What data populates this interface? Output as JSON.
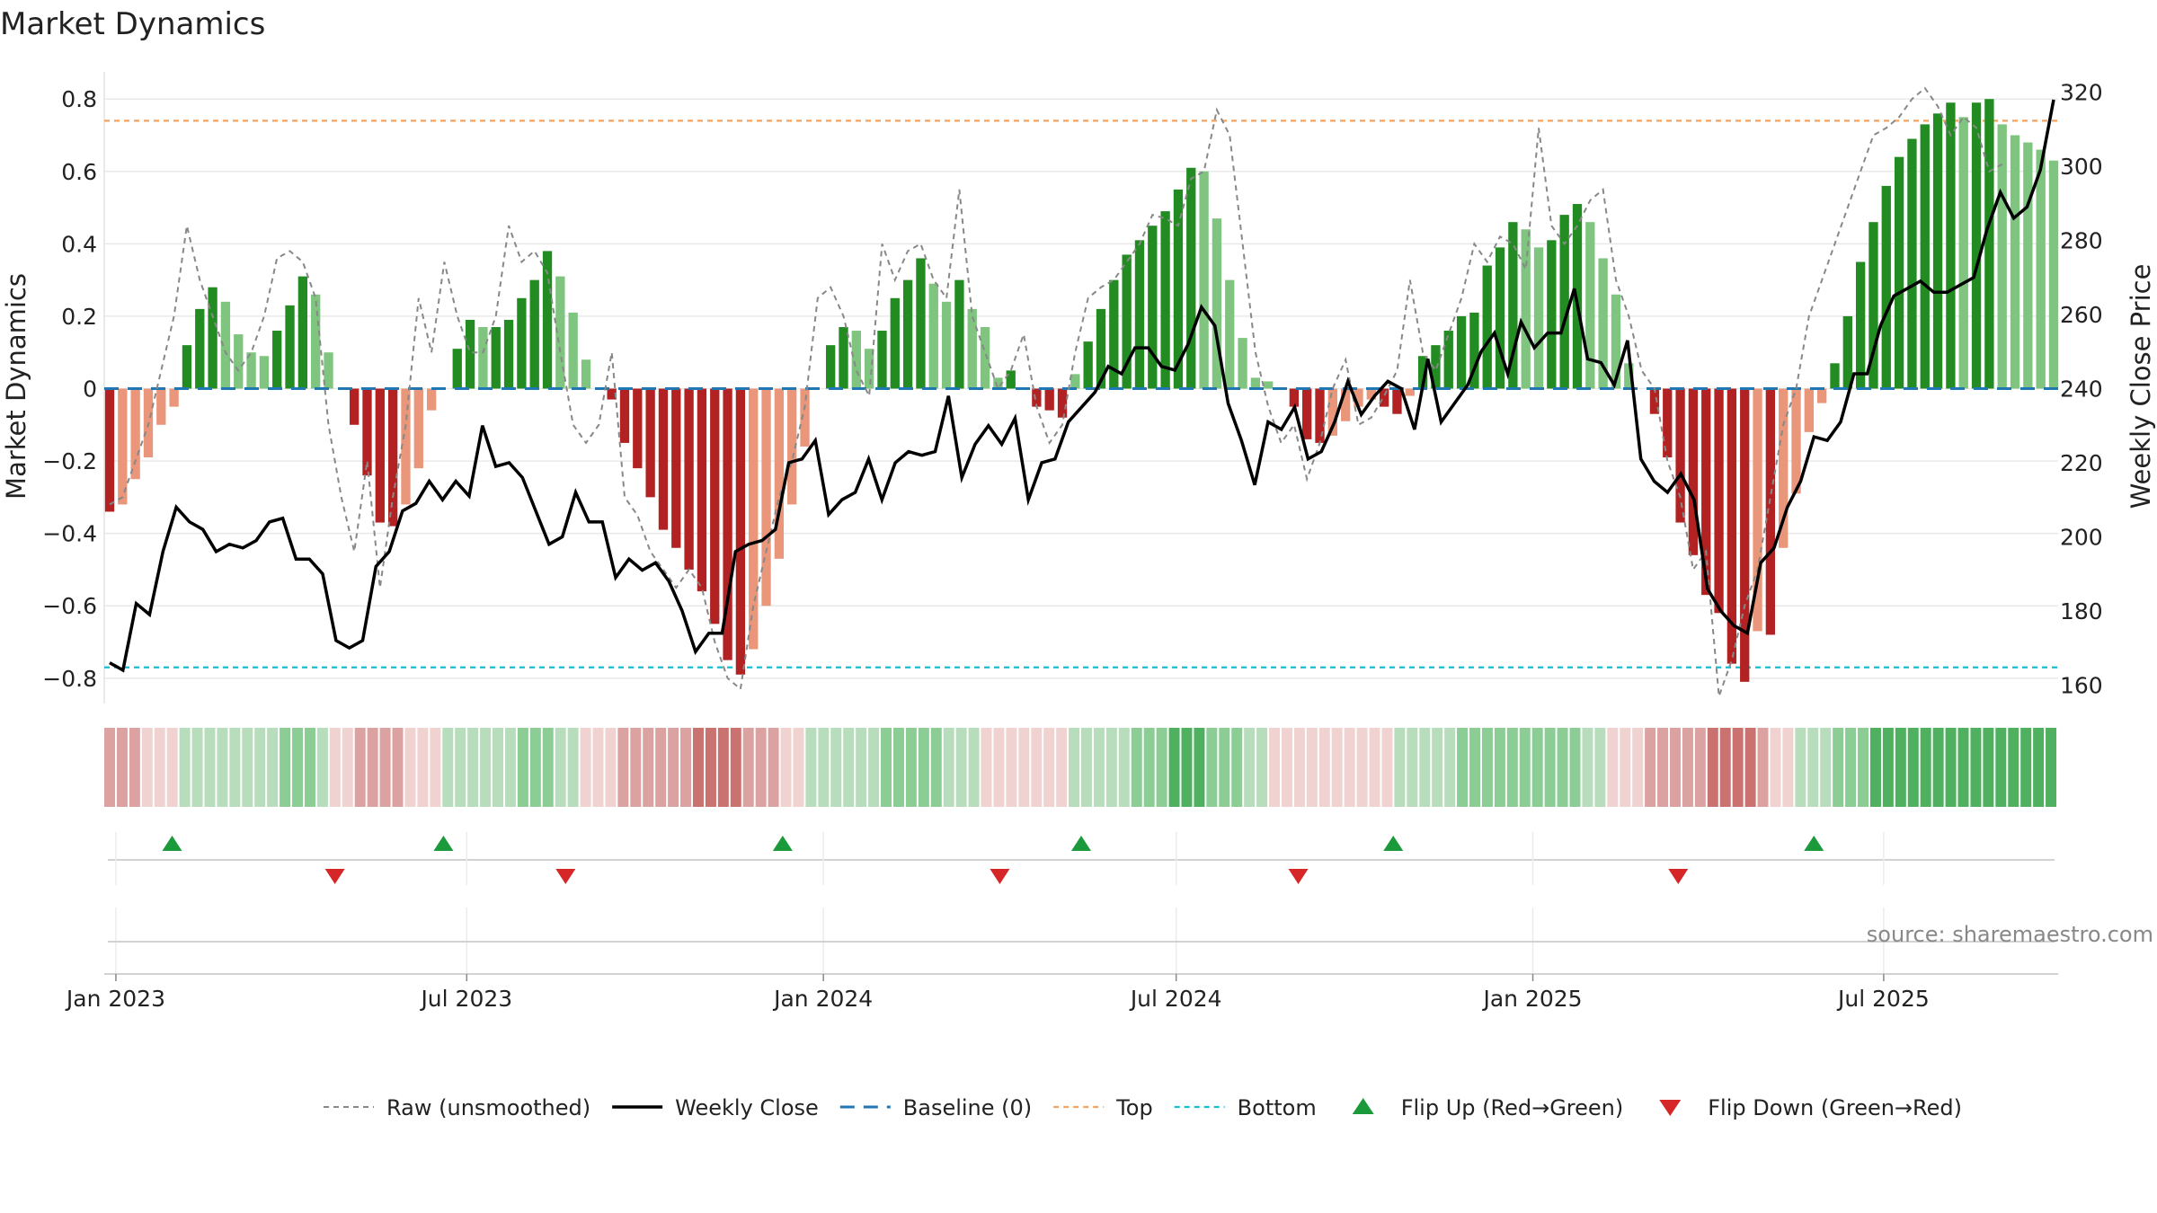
{
  "chart_data": {
    "type": "bar",
    "title": "Market Dynamics",
    "ylabel_left": "Market Dynamics",
    "ylabel_right": "Weekly Close Price",
    "ylim_left": [
      -0.87,
      0.87
    ],
    "ylim_right": [
      155,
      325
    ],
    "yticks_left": [
      "0.8",
      "0.6",
      "0.4",
      "0.2",
      "0",
      "−0.2",
      "−0.4",
      "−0.6",
      "−0.8"
    ],
    "yticks_left_values": [
      0.8,
      0.6,
      0.4,
      0.2,
      0,
      -0.2,
      -0.4,
      -0.6,
      -0.8
    ],
    "yticks_right": [
      "320",
      "300",
      "280",
      "260",
      "240",
      "220",
      "200",
      "180",
      "160"
    ],
    "yticks_right_values": [
      320,
      300,
      280,
      260,
      240,
      220,
      200,
      180,
      160
    ],
    "x_start": "2022-12-26",
    "x_end": "2025-09-29",
    "xticks": [
      {
        "date": "2023-01-01",
        "label": "Jan 2023"
      },
      {
        "date": "2023-07-01",
        "label": "Jul 2023"
      },
      {
        "date": "2024-01-01",
        "label": "Jan 2024"
      },
      {
        "date": "2024-07-01",
        "label": "Jul 2024"
      },
      {
        "date": "2025-01-01",
        "label": "Jan 2025"
      },
      {
        "date": "2025-07-01",
        "label": "Jul 2025"
      }
    ],
    "top_line": 0.74,
    "bottom_line": -0.77,
    "baseline": 0,
    "bars": [
      -0.34,
      -0.32,
      -0.25,
      -0.19,
      -0.1,
      -0.05,
      0.12,
      0.22,
      0.28,
      0.24,
      0.15,
      0.1,
      0.09,
      0.16,
      0.23,
      0.31,
      0.26,
      0.1,
      0,
      -0.1,
      -0.24,
      -0.37,
      -0.38,
      -0.32,
      -0.22,
      -0.06,
      0,
      0.11,
      0.19,
      0.17,
      0.17,
      0.19,
      0.25,
      0.3,
      0.38,
      0.31,
      0.21,
      0.08,
      0,
      -0.03,
      -0.15,
      -0.22,
      -0.3,
      -0.39,
      -0.44,
      -0.5,
      -0.56,
      -0.65,
      -0.75,
      -0.79,
      -0.72,
      -0.6,
      -0.47,
      -0.32,
      -0.16,
      0,
      0.12,
      0.17,
      0.16,
      0.11,
      0.16,
      0.25,
      0.3,
      0.36,
      0.29,
      0.24,
      0.3,
      0.22,
      0.17,
      0.03,
      0.05,
      0,
      -0.05,
      -0.06,
      -0.08,
      0.04,
      0.13,
      0.22,
      0.3,
      0.37,
      0.41,
      0.45,
      0.49,
      0.55,
      0.61,
      0.6,
      0.47,
      0.3,
      0.14,
      0.03,
      0.02,
      0,
      -0.05,
      -0.14,
      -0.15,
      -0.13,
      -0.09,
      -0.05,
      -0.03,
      -0.05,
      -0.07,
      -0.02,
      0.09,
      0.12,
      0.16,
      0.2,
      0.21,
      0.34,
      0.39,
      0.46,
      0.44,
      0.39,
      0.41,
      0.48,
      0.51,
      0.46,
      0.36,
      0.26,
      0.07,
      0,
      -0.07,
      -0.19,
      -0.37,
      -0.46,
      -0.57,
      -0.62,
      -0.76,
      -0.81,
      -0.67,
      -0.68,
      -0.44,
      -0.29,
      -0.12,
      -0.04,
      0.07,
      0.2,
      0.35,
      0.46,
      0.56,
      0.64,
      0.69,
      0.73,
      0.76,
      0.79,
      0.75,
      0.79,
      0.8,
      0.73,
      0.7,
      0.68,
      0.66,
      0.63
    ],
    "raw": [
      -0.32,
      -0.3,
      -0.2,
      -0.1,
      0.05,
      0.2,
      0.45,
      0.3,
      0.2,
      0.1,
      0.05,
      0.1,
      0.2,
      0.36,
      0.38,
      0.35,
      0.25,
      -0.1,
      -0.3,
      -0.45,
      -0.2,
      -0.55,
      -0.3,
      -0.1,
      0.25,
      0.1,
      0.35,
      0.2,
      0.1,
      0.1,
      0.2,
      0.45,
      0.35,
      0.38,
      0.32,
      0.1,
      -0.1,
      -0.15,
      -0.1,
      0.1,
      -0.3,
      -0.35,
      -0.45,
      -0.5,
      -0.55,
      -0.5,
      -0.55,
      -0.7,
      -0.8,
      -0.83,
      -0.6,
      -0.45,
      -0.3,
      -0.2,
      -0.05,
      0.25,
      0.28,
      0.2,
      0.05,
      -0.02,
      0.4,
      0.3,
      0.38,
      0.4,
      0.3,
      0.25,
      0.55,
      0.2,
      0.1,
      0.0,
      0.05,
      0.15,
      -0.05,
      -0.15,
      -0.1,
      0.1,
      0.25,
      0.28,
      0.3,
      0.35,
      0.4,
      0.48,
      0.47,
      0.45,
      0.58,
      0.6,
      0.77,
      0.7,
      0.4,
      0.1,
      -0.05,
      -0.15,
      -0.1,
      -0.25,
      -0.15,
      0.0,
      0.08,
      -0.1,
      -0.08,
      -0.02,
      0.05,
      0.3,
      0.1,
      0.05,
      0.15,
      0.25,
      0.4,
      0.35,
      0.42,
      0.4,
      0.33,
      0.72,
      0.45,
      0.4,
      0.45,
      0.52,
      0.55,
      0.3,
      0.2,
      0.05,
      0.0,
      -0.2,
      -0.3,
      -0.5,
      -0.45,
      -0.85,
      -0.75,
      -0.6,
      -0.5,
      -0.3,
      -0.1,
      0.0,
      0.2,
      0.3,
      0.4,
      0.5,
      0.6,
      0.7,
      0.72,
      0.75,
      0.8,
      0.83,
      0.78,
      0.7,
      0.75,
      0.72,
      0.6,
      0.62
    ],
    "close": [
      166,
      164,
      182,
      179,
      196,
      208,
      204,
      202,
      196,
      198,
      197,
      199,
      204,
      205,
      194,
      194,
      190,
      172,
      170,
      172,
      192,
      196,
      207,
      209,
      215,
      210,
      215,
      211,
      230,
      219,
      220,
      216,
      207,
      198,
      200,
      212,
      204,
      204,
      189,
      194,
      191,
      193,
      188,
      180,
      169,
      174,
      174,
      196,
      198,
      199,
      202,
      220,
      221,
      226,
      206,
      210,
      212,
      221,
      210,
      220,
      223,
      222,
      223,
      238,
      216,
      225,
      230,
      225,
      232,
      210,
      220,
      221,
      231,
      235,
      239,
      246,
      244,
      251,
      251,
      246,
      245,
      252,
      262,
      257,
      236,
      226,
      214,
      231,
      229,
      235,
      221,
      223,
      231,
      242,
      233,
      238,
      242,
      240,
      229,
      248,
      231,
      236,
      241,
      250,
      255,
      244,
      258,
      251,
      255,
      255,
      267,
      248,
      247,
      241,
      253,
      221,
      215,
      212,
      217,
      210,
      186,
      180,
      176,
      174,
      193,
      197,
      208,
      215,
      227,
      226,
      231,
      244,
      244,
      257,
      265,
      267,
      269,
      266,
      266,
      268,
      270,
      283,
      293,
      286,
      289,
      299,
      318
    ],
    "heat_strip": [
      -2,
      -2,
      -2,
      -1,
      -1,
      -1,
      1,
      1,
      1,
      1,
      1,
      1,
      1,
      1,
      2,
      2,
      2,
      1,
      -1,
      -1,
      -2,
      -2,
      -2,
      -2,
      -1,
      -1,
      -1,
      1,
      1,
      1,
      1,
      1,
      1,
      2,
      2,
      2,
      1,
      1,
      -1,
      -1,
      -1,
      -2,
      -2,
      -2,
      -2,
      -2,
      -2,
      -3,
      -3,
      -3,
      -3,
      -2,
      -2,
      -2,
      -1,
      -1,
      1,
      1,
      1,
      1,
      1,
      1,
      2,
      2,
      2,
      2,
      2,
      1,
      1,
      1,
      -1,
      -1,
      -1,
      -1,
      -1,
      -1,
      -1,
      1,
      1,
      1,
      1,
      1,
      2,
      2,
      2,
      3,
      3,
      3,
      2,
      2,
      2,
      1,
      1,
      -1,
      -1,
      -1,
      -1,
      -1,
      -1,
      -1,
      -1,
      -1,
      -1,
      1,
      1,
      1,
      1,
      1,
      2,
      2,
      2,
      2,
      2,
      2,
      2,
      2,
      2,
      2,
      1,
      1,
      -1,
      -1,
      -1,
      -2,
      -2,
      -2,
      -2,
      -2,
      -3,
      -3,
      -3,
      -3,
      -2,
      -1,
      -1,
      1,
      1,
      1,
      2,
      2,
      2,
      3,
      3,
      3,
      3,
      3,
      3,
      3,
      3,
      3,
      3,
      3,
      3,
      3,
      3,
      3
    ],
    "flip_up": [
      "2023-01-30",
      "2023-06-19",
      "2023-12-11",
      "2024-05-13",
      "2024-10-21",
      "2025-05-26"
    ],
    "flip_down": [
      "2023-04-24",
      "2023-08-21",
      "2024-04-01",
      "2024-09-02",
      "2025-03-17"
    ],
    "colors": {
      "strong_green": "#228b22",
      "light_green": "#7fc47f",
      "strong_red": "#b22222",
      "light_red": "#e9967a",
      "raw": "#888888",
      "close": "#000000",
      "baseline": "#1f77b4",
      "top": "#f4a460",
      "bottom": "#17becf",
      "flip_up": "#1a9a3a",
      "flip_down": "#d62728"
    },
    "legend": [
      {
        "label": "Raw (unsmoothed)",
        "kind": "raw"
      },
      {
        "label": "Weekly Close",
        "kind": "close"
      },
      {
        "label": "Baseline (0)",
        "kind": "baseline"
      },
      {
        "label": "Top",
        "kind": "top"
      },
      {
        "label": "Bottom",
        "kind": "bottom"
      },
      {
        "label": "Flip Up (Red→Green)",
        "kind": "flip_up"
      },
      {
        "label": "Flip Down (Green→Red)",
        "kind": "flip_down"
      }
    ],
    "legend_position": "bottom-center"
  },
  "source": "source: sharemaestro.com"
}
